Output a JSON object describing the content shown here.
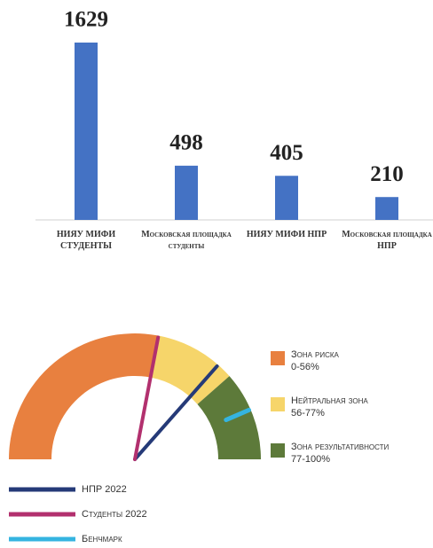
{
  "chart_data": [
    {
      "type": "bar",
      "categories": [
        "НИЯУ МИФИ СТУДЕНТЫ",
        "Московская площадка студенты",
        "НИЯУ МИФИ НПР",
        "Московская площадка НПР"
      ],
      "values": [
        1629,
        498,
        405,
        210
      ],
      "color": "#4472c4"
    },
    {
      "type": "gauge",
      "lim": [
        0,
        100
      ],
      "zones": [
        {
          "name": "Зона риска",
          "label": "0-56%",
          "from": 0,
          "to": 56,
          "color": "#e8803f"
        },
        {
          "name": "Нейтральная зона",
          "label": "56-77%",
          "from": 56,
          "to": 77,
          "color": "#f6d56a"
        },
        {
          "name": "Зона результативности",
          "label": "77-100%",
          "from": 77,
          "to": 100,
          "color": "#5d7a3a"
        }
      ],
      "series": [
        {
          "name": "НПР 2022",
          "color": "#253a78",
          "values": [
            73
          ]
        },
        {
          "name": "Студенты 2022",
          "color": "#b2306e",
          "values": [
            56
          ]
        },
        {
          "name": "Бенчмарк",
          "color": "#35b4e0",
          "values": [
            87
          ]
        }
      ]
    }
  ]
}
